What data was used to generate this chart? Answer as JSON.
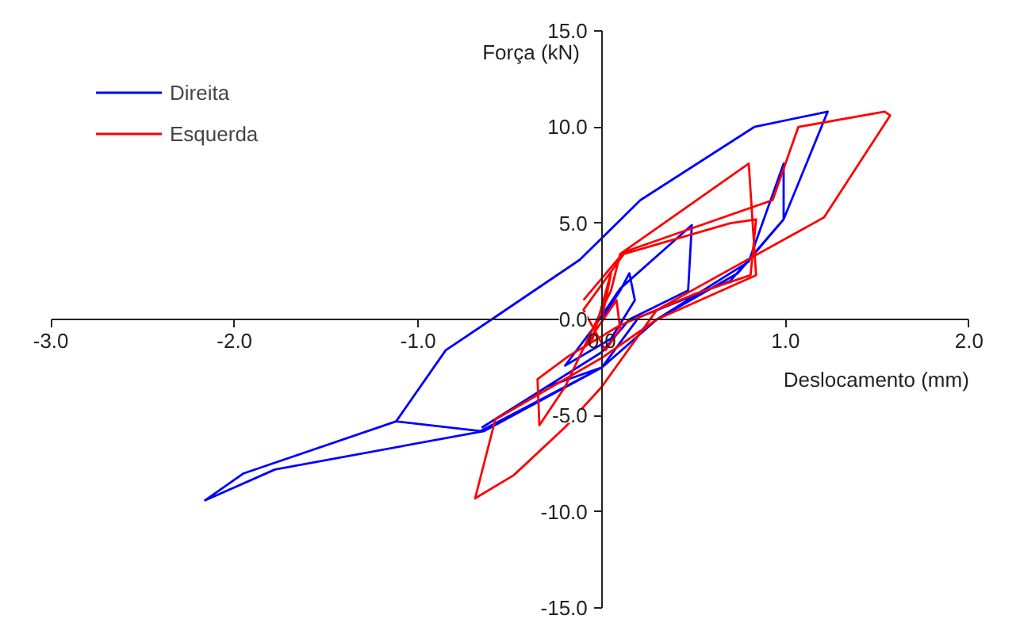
{
  "chart_data": {
    "type": "line",
    "xlabel": "Deslocamento (mm)",
    "ylabel": "Força (kN)",
    "xlim": [
      -3,
      2
    ],
    "ylim": [
      -15,
      15
    ],
    "xticks": [
      {
        "value": -3,
        "label": "-3.0"
      },
      {
        "value": -2,
        "label": "-2.0"
      },
      {
        "value": -1,
        "label": "-1.0"
      },
      {
        "value": 0,
        "label": "0.0"
      },
      {
        "value": 1,
        "label": "1.0"
      },
      {
        "value": 2,
        "label": "2.0"
      }
    ],
    "yticks": [
      {
        "value": -15,
        "label": "-15.0"
      },
      {
        "value": -10,
        "label": "-10.0"
      },
      {
        "value": -5,
        "label": "-5.0"
      },
      {
        "value": 0,
        "label": "0.0"
      },
      {
        "value": 5,
        "label": "5.0"
      },
      {
        "value": 10,
        "label": "10.0"
      },
      {
        "value": 15,
        "label": "15.0"
      }
    ],
    "grid": false,
    "legend": "top left",
    "marker": "none",
    "line_style": "solid",
    "series": [
      {
        "name": "Direita",
        "color": "#0000ff",
        "x": [
          0,
          0.1,
          0.15,
          0.18,
          0.05,
          -0.2,
          -0.05,
          0.1,
          0.49,
          0.47,
          0.15,
          0,
          -0.65,
          -0.3,
          0,
          0.3,
          0.8,
          0.99,
          0.99,
          0.7,
          0.2,
          0,
          -0.66,
          -1.12,
          -1.95,
          -2.16,
          -1.78,
          -0.64,
          0,
          0.3,
          0.74,
          0.99,
          1.23,
          0.83,
          0.21,
          -0.12,
          -0.6,
          -0.85,
          -1.12
        ],
        "values": [
          0,
          1.5,
          2.4,
          1.0,
          -1.0,
          -2.4,
          -0.5,
          1.6,
          4.9,
          1.5,
          0,
          -1.7,
          -5.6,
          -3.5,
          -2.5,
          0,
          3.0,
          8.1,
          5.2,
          2.0,
          0.1,
          -2.5,
          -5.8,
          -5.3,
          -8.0,
          -9.4,
          -7.8,
          -5.8,
          -2.5,
          0,
          2.4,
          5.2,
          10.8,
          10.0,
          6.2,
          3.1,
          0,
          -1.6,
          -5.3
        ]
      },
      {
        "name": "Esquerda",
        "color": "#ff0000",
        "x": [
          0,
          0.05,
          -0.05,
          -0.1,
          0.08,
          0.1,
          0.02,
          -0.1,
          0.12,
          0.7,
          0.84,
          0.81,
          0.5,
          0.1,
          -0.18,
          -0.35,
          -0.34,
          -0.2,
          0.05,
          0.1,
          0.8,
          0.84,
          0.3,
          0,
          -0.58,
          -0.69,
          -0.48,
          -0.2,
          0,
          0.3,
          1.21,
          1.57,
          1.54,
          1.07,
          0.93,
          0.12,
          -0.1
        ],
        "values": [
          0,
          2.4,
          -1.0,
          -1.5,
          1.0,
          -0.5,
          -1.6,
          0.5,
          3.4,
          5.0,
          5.2,
          2.3,
          1.3,
          -0.3,
          -1.9,
          -3.1,
          -5.5,
          -3.5,
          1.5,
          3.4,
          8.1,
          2.3,
          0,
          -2.0,
          -5.2,
          -9.3,
          -8.1,
          -5.6,
          -3.5,
          0.5,
          5.3,
          10.6,
          10.8,
          10.0,
          6.2,
          3.5,
          1.0
        ]
      }
    ]
  }
}
